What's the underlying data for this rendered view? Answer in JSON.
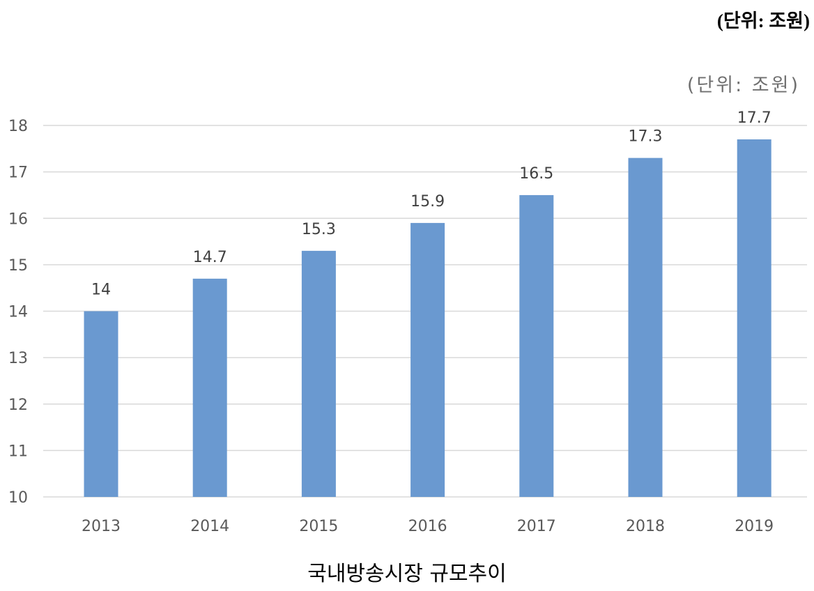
{
  "unit_note_top": "(단위: 조원)",
  "unit_note_chart": "(단위: 조원)",
  "caption": "국내방송시장 규모추이",
  "colors": {
    "bar": "#6a99d0",
    "grid": "#d9d9d9",
    "axis_text": "#595959",
    "label_text": "#404040"
  },
  "chart_data": {
    "type": "bar",
    "categories": [
      "2013",
      "2014",
      "2015",
      "2016",
      "2017",
      "2018",
      "2019"
    ],
    "values": [
      14,
      14.7,
      15.3,
      15.9,
      16.5,
      17.3,
      17.7
    ],
    "data_labels": [
      "14",
      "14.7",
      "15.3",
      "15.9",
      "16.5",
      "17.3",
      "17.7"
    ],
    "y_ticks": [
      "10",
      "11",
      "12",
      "13",
      "14",
      "15",
      "16",
      "17",
      "18"
    ],
    "ylim": [
      10,
      18
    ],
    "grid": true,
    "legend": "none"
  }
}
